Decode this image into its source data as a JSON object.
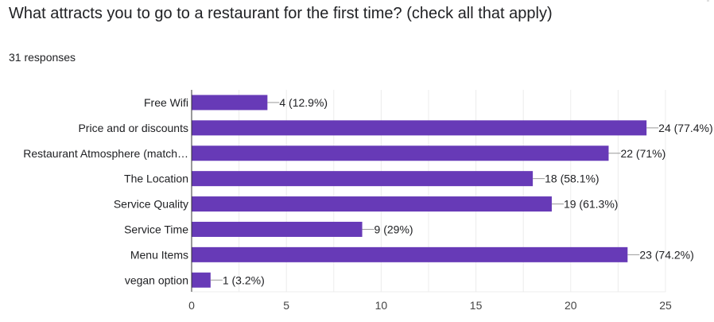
{
  "question": {
    "title": "What attracts you to go to a restaurant for the first time? (check all that apply)",
    "responses": "31 responses"
  },
  "colors": {
    "bar": "#673ab7",
    "text": "#202124",
    "axis_text": "#444444",
    "grid": "#ececec",
    "connector": "#999999"
  },
  "chart_data": {
    "type": "bar",
    "orientation": "horizontal",
    "categories": [
      "Free Wifi",
      "Price and or discounts",
      "Restaurant Atmosphere (match…",
      "The Location",
      "Service Quality",
      "Service Time",
      "Menu Items",
      "vegan option"
    ],
    "values": [
      4,
      24,
      22,
      18,
      19,
      9,
      23,
      1
    ],
    "data_labels": [
      "4 (12.9%)",
      "24 (77.4%)",
      "22 (71%)",
      "18 (58.1%)",
      "19 (61.3%)",
      "9 (29%)",
      "23 (74.2%)",
      "1 (3.2%)"
    ],
    "xlim": [
      0,
      25
    ],
    "xticks": [
      0,
      5,
      10,
      15,
      20,
      25
    ],
    "grid": true,
    "title": "What attracts you to go to a restaurant for the first time? (check all that apply)",
    "xlabel": "",
    "ylabel": ""
  }
}
